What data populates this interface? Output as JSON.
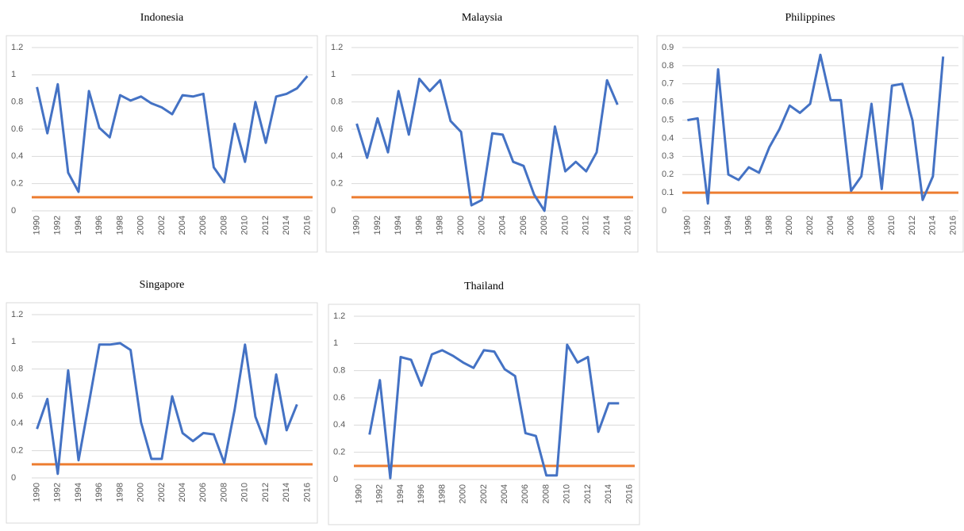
{
  "chart_data": [
    {
      "type": "line",
      "title": "Indonesia",
      "categories": [
        "1990",
        null,
        "1992",
        null,
        "1994",
        null,
        "1996",
        null,
        "1998",
        null,
        "2000",
        null,
        "2002",
        null,
        "2004",
        null,
        "2006",
        null,
        "2008",
        null,
        "2010",
        null,
        "2012",
        null,
        "2014",
        null,
        "2016"
      ],
      "series": [
        {
          "color": "#4472c4",
          "values": [
            0.91,
            0.57,
            0.93,
            0.28,
            0.14,
            0.88,
            0.61,
            0.54,
            0.85,
            0.81,
            0.84,
            0.79,
            0.76,
            0.71,
            0.85,
            0.84,
            0.86,
            0.32,
            0.21,
            0.64,
            0.36,
            0.8,
            0.5,
            0.84,
            0.86,
            0.9,
            0.99
          ]
        }
      ],
      "hline": {
        "value": 0.1,
        "color": "#ed7d31"
      },
      "ylim": [
        0,
        1.2
      ],
      "yticks": [
        0,
        0.2,
        0.4,
        0.6,
        0.8,
        1,
        1.2
      ],
      "grid": true
    },
    {
      "type": "line",
      "title": "Malaysia",
      "categories": [
        "1990",
        null,
        "1992",
        null,
        "1994",
        null,
        "1996",
        null,
        "1998",
        null,
        "2000",
        null,
        "2002",
        null,
        "2004",
        null,
        "2006",
        null,
        "2008",
        null,
        "2010",
        null,
        "2012",
        null,
        "2014",
        null,
        "2016"
      ],
      "series": [
        {
          "color": "#4472c4",
          "values": [
            0.64,
            0.39,
            0.68,
            0.43,
            0.88,
            0.56,
            0.97,
            0.88,
            0.96,
            0.66,
            0.58,
            0.04,
            0.08,
            0.57,
            0.56,
            0.36,
            0.33,
            0.12,
            0.0,
            0.62,
            0.29,
            0.36,
            0.29,
            0.43,
            0.96,
            0.78,
            null
          ]
        }
      ],
      "hline": {
        "value": 0.1,
        "color": "#ed7d31"
      },
      "ylim": [
        0,
        1.2
      ],
      "yticks": [
        0,
        0.2,
        0.4,
        0.6,
        0.8,
        1,
        1.2
      ],
      "grid": true
    },
    {
      "type": "line",
      "title": "Philippines",
      "categories": [
        "1990",
        null,
        "1992",
        null,
        "1994",
        null,
        "1996",
        null,
        "1998",
        null,
        "2000",
        null,
        "2002",
        null,
        "2004",
        null,
        "2006",
        null,
        "2008",
        null,
        "2010",
        null,
        "2012",
        null,
        "2014",
        null,
        "2016"
      ],
      "series": [
        {
          "color": "#4472c4",
          "values": [
            0.5,
            0.51,
            0.04,
            0.78,
            0.2,
            0.17,
            0.24,
            0.21,
            0.35,
            0.45,
            0.58,
            0.54,
            0.59,
            0.86,
            0.61,
            0.61,
            0.11,
            0.19,
            0.59,
            0.12,
            0.69,
            0.7,
            0.5,
            0.06,
            0.19,
            0.85,
            null
          ]
        }
      ],
      "hline": {
        "value": 0.1,
        "color": "#ed7d31"
      },
      "ylim": [
        0,
        0.9
      ],
      "yticks": [
        0,
        0.1,
        0.2,
        0.3,
        0.4,
        0.5,
        0.6,
        0.7,
        0.8,
        0.9
      ],
      "grid": true
    },
    {
      "type": "line",
      "title": "Singapore",
      "categories": [
        "1990",
        null,
        "1992",
        null,
        "1994",
        null,
        "1996",
        null,
        "1998",
        null,
        "2000",
        null,
        "2002",
        null,
        "2004",
        null,
        "2006",
        null,
        "2008",
        null,
        "2010",
        null,
        "2012",
        null,
        "2014",
        null,
        "2016"
      ],
      "series": [
        {
          "color": "#4472c4",
          "values": [
            0.36,
            0.58,
            0.03,
            0.79,
            0.13,
            0.55,
            0.98,
            0.98,
            0.99,
            0.94,
            0.41,
            0.14,
            0.14,
            0.6,
            0.33,
            0.27,
            0.33,
            0.32,
            0.11,
            0.5,
            0.98,
            0.45,
            0.25,
            0.76,
            0.35,
            0.54,
            null
          ]
        }
      ],
      "hline": {
        "value": 0.1,
        "color": "#ed7d31"
      },
      "ylim": [
        0,
        1.2
      ],
      "yticks": [
        0,
        0.2,
        0.4,
        0.6,
        0.8,
        1,
        1.2
      ],
      "grid": true
    },
    {
      "type": "line",
      "title": "Thailand",
      "categories": [
        "1990",
        null,
        "1992",
        null,
        "1994",
        null,
        "1996",
        null,
        "1998",
        null,
        "2000",
        null,
        "2002",
        null,
        "2004",
        null,
        "2006",
        null,
        "2008",
        null,
        "2010",
        null,
        "2012",
        null,
        "2014",
        null,
        "2016"
      ],
      "series": [
        {
          "color": "#4472c4",
          "values": [
            null,
            0.33,
            0.73,
            0.01,
            0.9,
            0.88,
            0.69,
            0.92,
            0.95,
            0.91,
            0.86,
            0.82,
            0.95,
            0.94,
            0.81,
            0.76,
            0.34,
            0.32,
            0.03,
            0.03,
            0.99,
            0.86,
            0.9,
            0.35,
            0.56,
            0.56,
            null
          ]
        }
      ],
      "hline": {
        "value": 0.1,
        "color": "#ed7d31"
      },
      "ylim": [
        0,
        1.2
      ],
      "yticks": [
        0,
        0.2,
        0.4,
        0.6,
        0.8,
        1,
        1.2
      ],
      "grid": true
    }
  ]
}
